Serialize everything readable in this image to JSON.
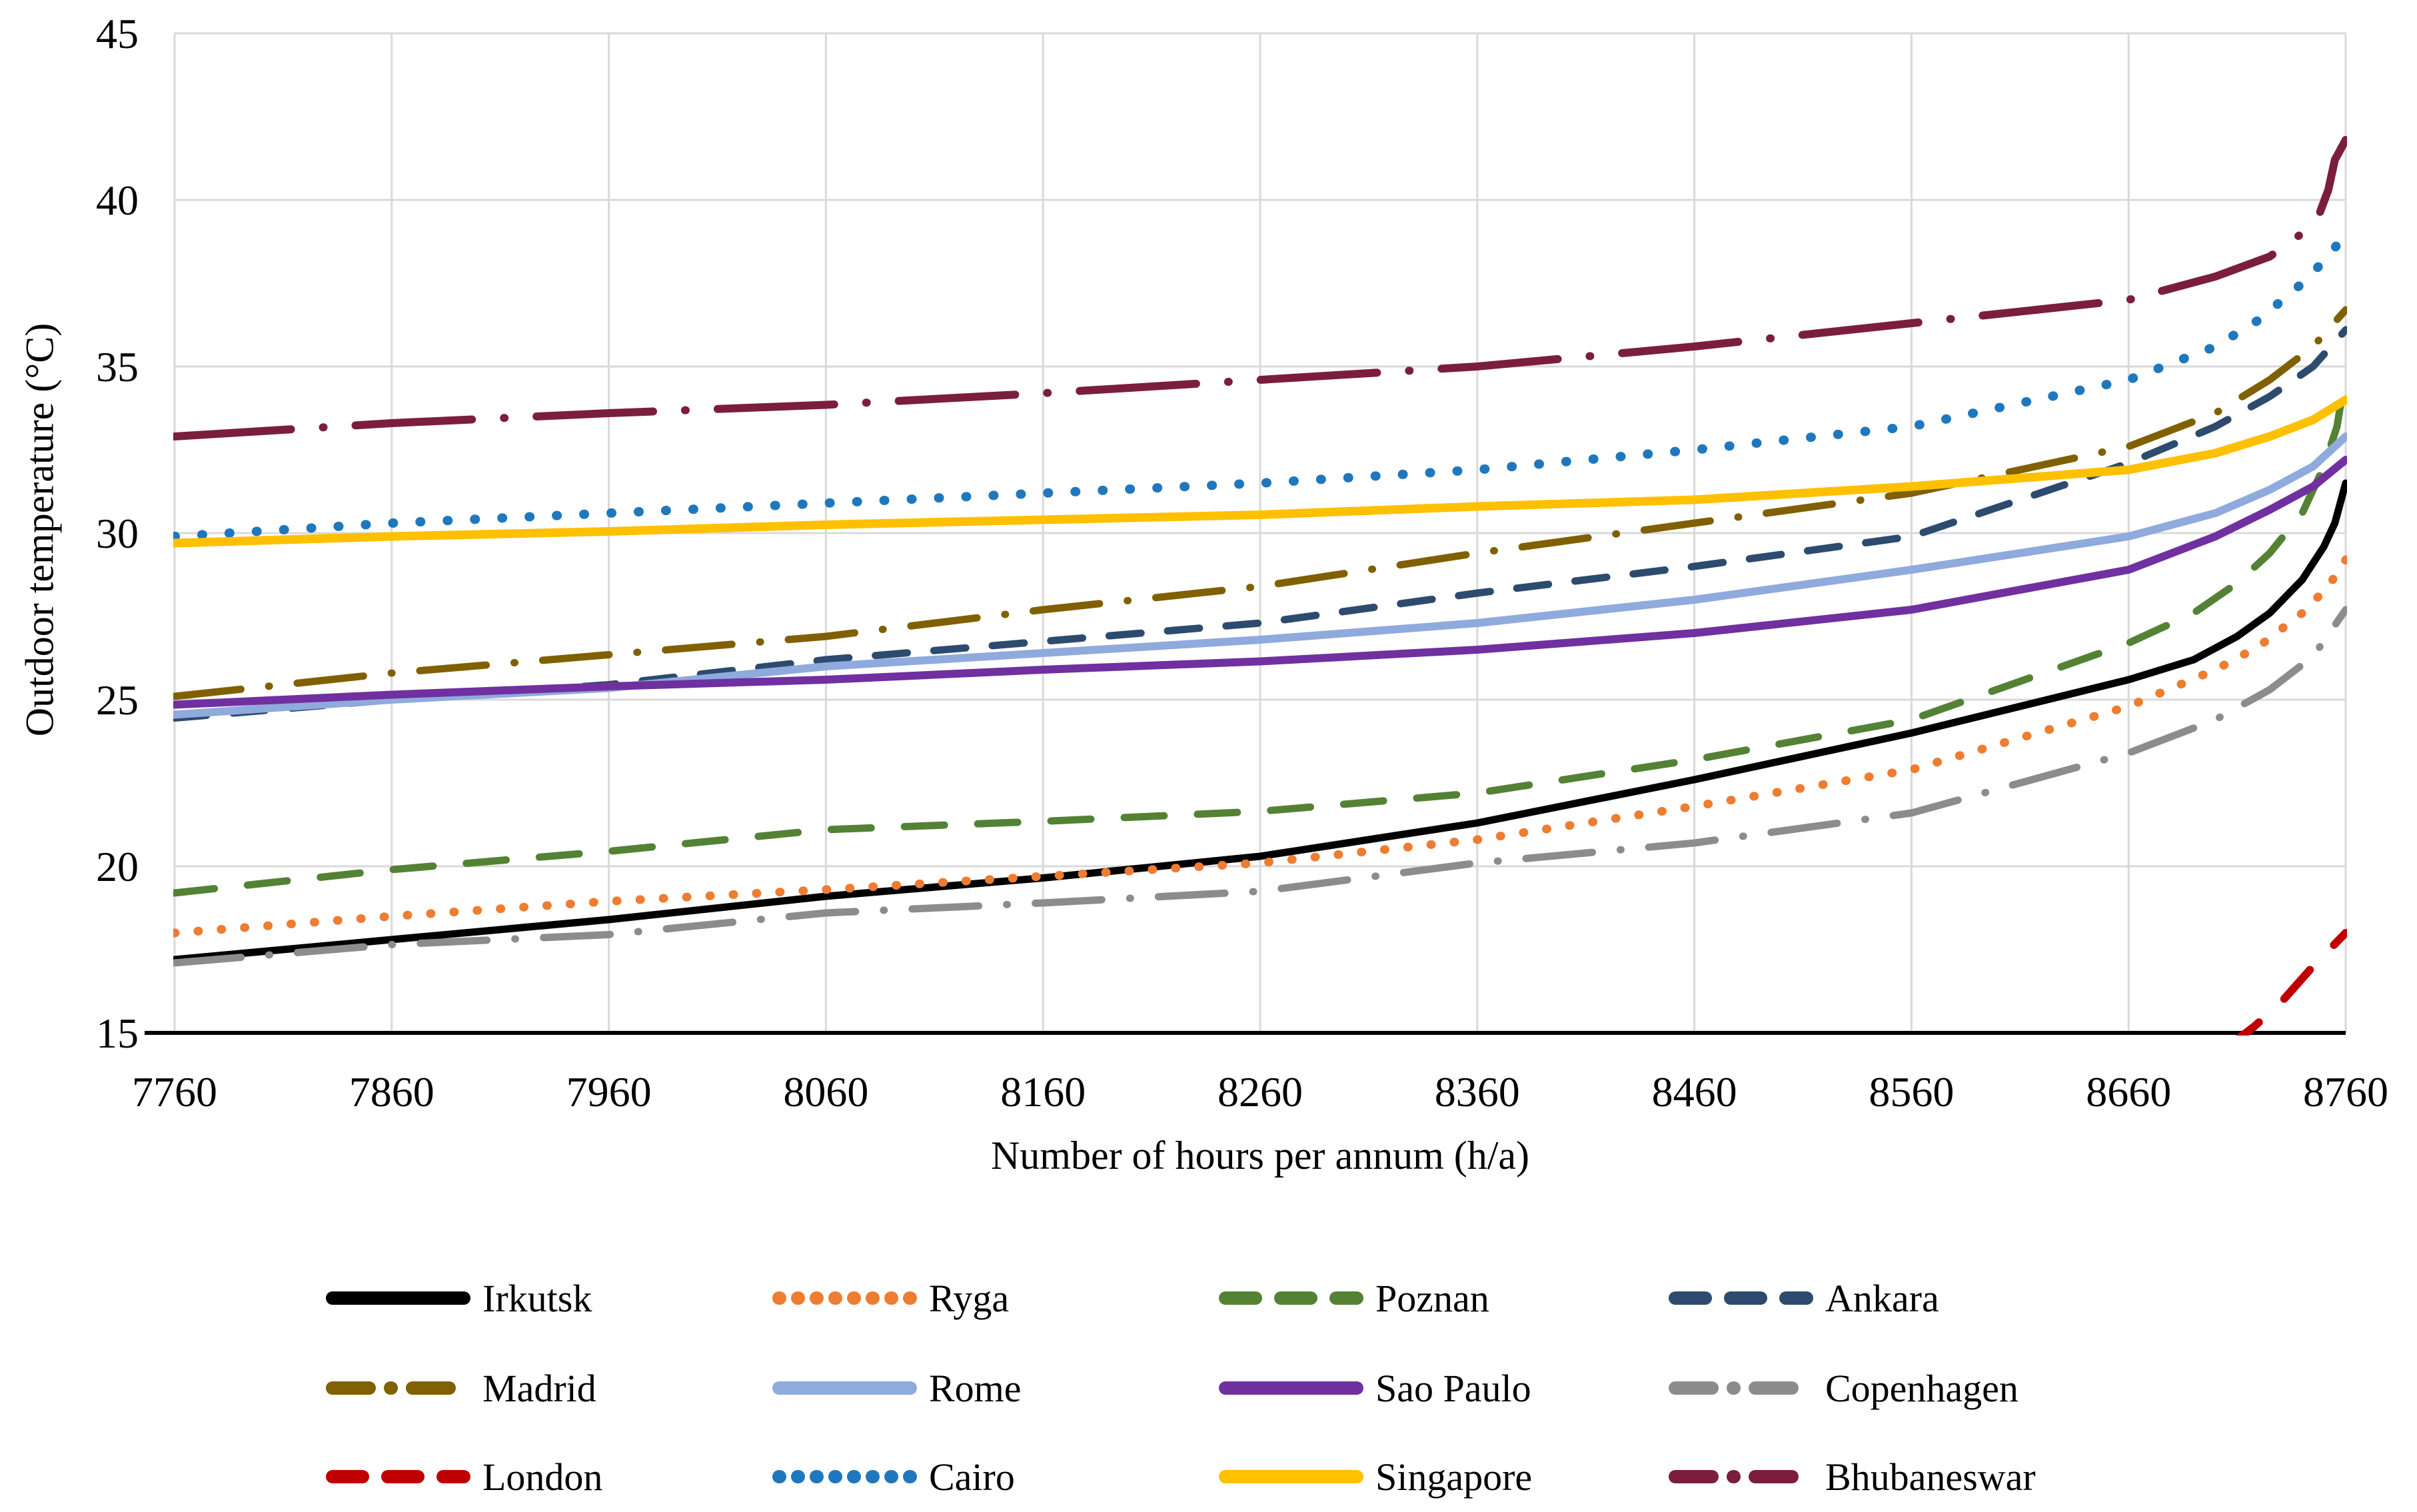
{
  "chart_data": {
    "type": "line",
    "title": "",
    "xlabel": "Number of hours per annum (h/a)",
    "ylabel": "Outdoor temperature (°C)",
    "xlim": [
      7760,
      8760
    ],
    "ylim": [
      15,
      45
    ],
    "x_ticks": [
      7760,
      7860,
      7960,
      8060,
      8160,
      8260,
      8360,
      8460,
      8560,
      8660,
      8760
    ],
    "y_ticks": [
      15,
      20,
      25,
      30,
      35,
      40,
      45
    ],
    "grid": true,
    "gridline_color": "#D9D9D9",
    "axis_line_color": "#000000",
    "legend_position": "bottom",
    "series": [
      {
        "name": "Irkutsk",
        "color": "#000000",
        "style": "solid",
        "points": [
          [
            7760,
            17.2
          ],
          [
            7860,
            17.8
          ],
          [
            7960,
            18.4
          ],
          [
            8060,
            19.1
          ],
          [
            8160,
            19.65
          ],
          [
            8260,
            20.3
          ],
          [
            8360,
            21.3
          ],
          [
            8460,
            22.6
          ],
          [
            8560,
            24.0
          ],
          [
            8660,
            25.6
          ],
          [
            8690,
            26.2
          ],
          [
            8710,
            26.9
          ],
          [
            8725,
            27.6
          ],
          [
            8740,
            28.6
          ],
          [
            8750,
            29.6
          ],
          [
            8755,
            30.3
          ],
          [
            8760,
            31.5
          ]
        ]
      },
      {
        "name": "Ryga",
        "color": "#ED7D31",
        "style": "dotted",
        "points": [
          [
            7760,
            18.0
          ],
          [
            7860,
            18.5
          ],
          [
            7960,
            18.95
          ],
          [
            8060,
            19.3
          ],
          [
            8160,
            19.7
          ],
          [
            8260,
            20.1
          ],
          [
            8360,
            20.8
          ],
          [
            8460,
            21.8
          ],
          [
            8560,
            22.9
          ],
          [
            8660,
            24.8
          ],
          [
            8700,
            25.9
          ],
          [
            8720,
            26.6
          ],
          [
            8740,
            27.6
          ],
          [
            8752,
            28.4
          ],
          [
            8760,
            29.2
          ]
        ]
      },
      {
        "name": "Poznan",
        "color": "#548235",
        "style": "dashed",
        "points": [
          [
            7760,
            19.2
          ],
          [
            7860,
            19.9
          ],
          [
            7960,
            20.45
          ],
          [
            8060,
            21.1
          ],
          [
            8160,
            21.35
          ],
          [
            8260,
            21.65
          ],
          [
            8360,
            22.2
          ],
          [
            8460,
            23.2
          ],
          [
            8560,
            24.4
          ],
          [
            8660,
            26.7
          ],
          [
            8690,
            27.6
          ],
          [
            8710,
            28.5
          ],
          [
            8725,
            29.4
          ],
          [
            8740,
            30.6
          ],
          [
            8750,
            32.0
          ],
          [
            8756,
            33.2
          ],
          [
            8760,
            34.8
          ]
        ]
      },
      {
        "name": "Ankara",
        "color": "#2D4B6E",
        "style": "dashed",
        "points": [
          [
            7760,
            24.45
          ],
          [
            7860,
            25.0
          ],
          [
            7960,
            25.45
          ],
          [
            8060,
            26.2
          ],
          [
            8160,
            26.75
          ],
          [
            8260,
            27.3
          ],
          [
            8360,
            28.2
          ],
          [
            8460,
            29.0
          ],
          [
            8560,
            29.9
          ],
          [
            8660,
            32.1
          ],
          [
            8700,
            33.2
          ],
          [
            8725,
            34.1
          ],
          [
            8745,
            35.0
          ],
          [
            8760,
            36.1
          ]
        ]
      },
      {
        "name": "Madrid",
        "color": "#806000",
        "style": "dashdot",
        "points": [
          [
            7760,
            25.1
          ],
          [
            7860,
            25.8
          ],
          [
            7960,
            26.35
          ],
          [
            8060,
            26.9
          ],
          [
            8160,
            27.7
          ],
          [
            8260,
            28.4
          ],
          [
            8360,
            29.4
          ],
          [
            8460,
            30.3
          ],
          [
            8560,
            31.2
          ],
          [
            8660,
            32.6
          ],
          [
            8700,
            33.6
          ],
          [
            8725,
            34.6
          ],
          [
            8745,
            35.6
          ],
          [
            8760,
            36.7
          ]
        ]
      },
      {
        "name": "Rome",
        "color": "#8FAADC",
        "style": "solid",
        "points": [
          [
            7760,
            24.55
          ],
          [
            7860,
            25.0
          ],
          [
            7960,
            25.35
          ],
          [
            8060,
            26.0
          ],
          [
            8160,
            26.4
          ],
          [
            8260,
            26.8
          ],
          [
            8360,
            27.3
          ],
          [
            8460,
            28.0
          ],
          [
            8560,
            28.9
          ],
          [
            8660,
            29.9
          ],
          [
            8700,
            30.6
          ],
          [
            8725,
            31.3
          ],
          [
            8745,
            32.0
          ],
          [
            8760,
            32.9
          ]
        ]
      },
      {
        "name": "Sao Paulo",
        "color": "#7030A0",
        "style": "solid",
        "points": [
          [
            7760,
            24.85
          ],
          [
            7860,
            25.15
          ],
          [
            7960,
            25.4
          ],
          [
            8060,
            25.6
          ],
          [
            8160,
            25.9
          ],
          [
            8260,
            26.15
          ],
          [
            8360,
            26.5
          ],
          [
            8460,
            27.0
          ],
          [
            8560,
            27.7
          ],
          [
            8660,
            28.9
          ],
          [
            8700,
            29.9
          ],
          [
            8725,
            30.7
          ],
          [
            8745,
            31.4
          ],
          [
            8760,
            32.2
          ]
        ]
      },
      {
        "name": "Copenhagen",
        "color": "#8C8C8C",
        "style": "dashdot",
        "points": [
          [
            7760,
            17.1
          ],
          [
            7860,
            17.65
          ],
          [
            7960,
            17.95
          ],
          [
            8060,
            18.6
          ],
          [
            8160,
            18.9
          ],
          [
            8260,
            19.25
          ],
          [
            8360,
            20.1
          ],
          [
            8460,
            20.7
          ],
          [
            8560,
            21.6
          ],
          [
            8660,
            23.4
          ],
          [
            8700,
            24.4
          ],
          [
            8725,
            25.3
          ],
          [
            8745,
            26.3
          ],
          [
            8760,
            27.7
          ]
        ]
      },
      {
        "name": "London",
        "color": "#C00000",
        "style": "dashed",
        "points": [
          [
            8706,
            14.6
          ],
          [
            8718,
            15.2
          ],
          [
            8730,
            15.9
          ],
          [
            8745,
            17.0
          ],
          [
            8760,
            18.0
          ]
        ]
      },
      {
        "name": "Cairo",
        "color": "#1F78BE",
        "style": "dotted",
        "points": [
          [
            7760,
            29.9
          ],
          [
            7860,
            30.3
          ],
          [
            7960,
            30.6
          ],
          [
            8060,
            30.9
          ],
          [
            8160,
            31.2
          ],
          [
            8260,
            31.5
          ],
          [
            8360,
            31.9
          ],
          [
            8460,
            32.5
          ],
          [
            8560,
            33.2
          ],
          [
            8660,
            34.6
          ],
          [
            8700,
            35.6
          ],
          [
            8720,
            36.4
          ],
          [
            8740,
            37.5
          ],
          [
            8752,
            38.3
          ],
          [
            8760,
            39.0
          ]
        ]
      },
      {
        "name": "Singapore",
        "color": "#FFC000",
        "style": "solid",
        "points": [
          [
            7760,
            29.7
          ],
          [
            7860,
            29.9
          ],
          [
            7960,
            30.05
          ],
          [
            8060,
            30.25
          ],
          [
            8160,
            30.4
          ],
          [
            8260,
            30.55
          ],
          [
            8360,
            30.8
          ],
          [
            8460,
            31.0
          ],
          [
            8560,
            31.4
          ],
          [
            8660,
            31.9
          ],
          [
            8700,
            32.4
          ],
          [
            8725,
            32.9
          ],
          [
            8745,
            33.4
          ],
          [
            8760,
            34.0
          ]
        ]
      },
      {
        "name": "Bhubaneswar",
        "color": "#7B1E3E",
        "style": "dashdot",
        "points": [
          [
            7760,
            32.9
          ],
          [
            7860,
            33.3
          ],
          [
            7960,
            33.6
          ],
          [
            8060,
            33.85
          ],
          [
            8160,
            34.2
          ],
          [
            8260,
            34.6
          ],
          [
            8360,
            35.0
          ],
          [
            8460,
            35.6
          ],
          [
            8560,
            36.3
          ],
          [
            8660,
            37.0
          ],
          [
            8700,
            37.7
          ],
          [
            8725,
            38.3
          ],
          [
            8740,
            39.0
          ],
          [
            8748,
            39.6
          ],
          [
            8752,
            40.3
          ],
          [
            8755,
            41.2
          ],
          [
            8760,
            41.8
          ]
        ]
      }
    ]
  },
  "legend": {
    "labels": [
      "Irkutsk",
      "Ryga",
      "Poznan",
      "Ankara",
      "Madrid",
      "Rome",
      "Sao Paulo",
      "Copenhagen",
      "London",
      "Cairo",
      "Singapore",
      "Bhubaneswar"
    ]
  }
}
